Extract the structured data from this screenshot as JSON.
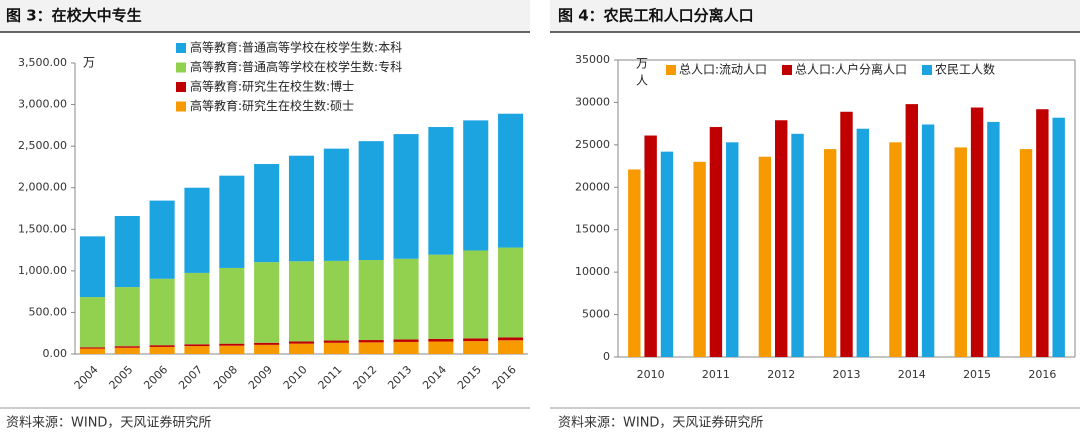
{
  "chart_data": [
    {
      "type": "stacked_bar",
      "title": "图 3：在校大中专生",
      "y_unit": "万",
      "source": "资料来源：WIND，天风证券研究所",
      "categories": [
        "2004",
        "2005",
        "2006",
        "2007",
        "2008",
        "2009",
        "2010",
        "2011",
        "2012",
        "2013",
        "2014",
        "2015",
        "2016"
      ],
      "series": [
        {
          "name": "高等教育:研究生在校生数:硕士",
          "color": "#f79a00",
          "values": [
            65,
            75,
            85,
            95,
            100,
            110,
            125,
            135,
            140,
            145,
            150,
            155,
            165
          ]
        },
        {
          "name": "高等教育:研究生在校生数:博士",
          "color": "#c00000",
          "values": [
            16,
            19,
            21,
            22,
            24,
            25,
            26,
            27,
            28,
            30,
            31,
            33,
            34
          ]
        },
        {
          "name": "高等教育:普通高等学校在校学生数:专科",
          "color": "#92d050",
          "values": [
            604,
            711,
            799,
            858,
            911,
            970,
            964,
            958,
            962,
            970,
            1014,
            1057,
            1081
          ]
        },
        {
          "name": "高等教育:普通高等学校在校学生数:本科",
          "color": "#1ca4e0",
          "values": [
            730,
            855,
            940,
            1025,
            1110,
            1180,
            1270,
            1350,
            1430,
            1500,
            1535,
            1565,
            1610
          ]
        }
      ],
      "ylim": [
        0,
        3500
      ],
      "yticks": [
        {
          "value": 0,
          "label": "0.00"
        },
        {
          "value": 500,
          "label": "500.00"
        },
        {
          "value": 1000,
          "label": "1,000.00"
        },
        {
          "value": 1500,
          "label": "1,500.00"
        },
        {
          "value": 2000,
          "label": "2,000.00"
        },
        {
          "value": 2500,
          "label": "2,500.00"
        },
        {
          "value": 3000,
          "label": "3,000.00"
        },
        {
          "value": 3500,
          "label": "3,500.00"
        }
      ]
    },
    {
      "type": "bar",
      "title": "图 4：农民工和人口分离人口",
      "y_unit": [
        "万",
        "人"
      ],
      "source": "资料来源：WIND，天风证券研究所",
      "categories": [
        "2010",
        "2011",
        "2012",
        "2013",
        "2014",
        "2015",
        "2016"
      ],
      "series": [
        {
          "name": "总人口:流动人口",
          "color": "#f79a00",
          "values": [
            22100,
            23000,
            23600,
            24500,
            25300,
            24700,
            24500
          ]
        },
        {
          "name": "总人口:人户分离人口",
          "color": "#c00000",
          "values": [
            26100,
            27100,
            27900,
            28900,
            29800,
            29400,
            29200
          ]
        },
        {
          "name": "农民工人数",
          "color": "#1ca4e0",
          "values": [
            24200,
            25300,
            26300,
            26900,
            27400,
            27700,
            28200
          ]
        }
      ],
      "ylim": [
        0,
        35000
      ],
      "yticks": [
        0,
        5000,
        10000,
        15000,
        20000,
        25000,
        30000,
        35000
      ]
    }
  ]
}
